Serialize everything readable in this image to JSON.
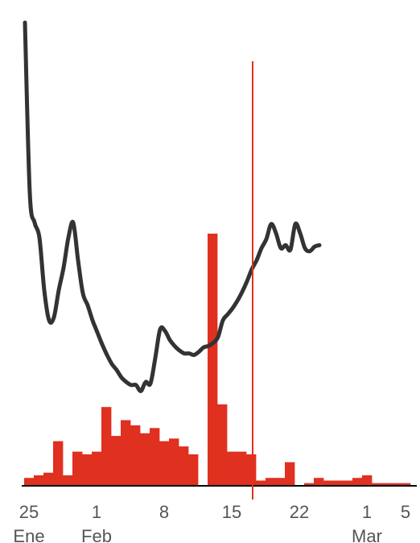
{
  "chart_data": {
    "type": "bar",
    "title": "",
    "xlabel": "",
    "ylabel": "",
    "grid": false,
    "legend": "none",
    "x_axis": {
      "ticks": [
        {
          "date": "2021-01-25",
          "label": "25",
          "sublabel": "Ene"
        },
        {
          "date": "2021-02-01",
          "label": "1",
          "sublabel": "Feb"
        },
        {
          "date": "2021-02-08",
          "label": "8",
          "sublabel": ""
        },
        {
          "date": "2021-02-15",
          "label": "15",
          "sublabel": ""
        },
        {
          "date": "2021-02-22",
          "label": "22",
          "sublabel": ""
        },
        {
          "date": "2021-03-01",
          "label": "1",
          "sublabel": "Mar"
        },
        {
          "date": "2021-03-05",
          "label": "5",
          "sublabel": ""
        }
      ]
    },
    "bars": {
      "color": "#e03020",
      "dates": [
        "2021-01-25",
        "2021-01-26",
        "2021-01-27",
        "2021-01-28",
        "2021-01-29",
        "2021-01-30",
        "2021-01-31",
        "2021-02-01",
        "2021-02-02",
        "2021-02-03",
        "2021-02-04",
        "2021-02-05",
        "2021-02-06",
        "2021-02-07",
        "2021-02-08",
        "2021-02-09",
        "2021-02-10",
        "2021-02-11",
        "2021-02-12",
        "2021-02-13",
        "2021-02-14",
        "2021-02-15",
        "2021-02-16",
        "2021-02-17",
        "2021-02-18",
        "2021-02-19",
        "2021-02-20",
        "2021-02-21",
        "2021-02-22",
        "2021-02-23",
        "2021-02-24",
        "2021-02-25",
        "2021-02-26",
        "2021-02-27",
        "2021-02-28",
        "2021-03-01",
        "2021-03-02",
        "2021-03-03",
        "2021-03-04",
        "2021-03-05"
      ],
      "values": [
        3,
        4,
        5,
        17,
        4,
        13,
        12,
        13,
        30,
        19,
        25,
        23,
        20,
        22,
        17,
        18,
        15,
        12,
        0,
        96,
        31,
        13,
        13,
        12,
        2,
        3,
        3,
        9,
        0,
        1,
        3,
        2,
        2,
        2,
        3,
        4,
        1,
        1,
        1,
        1
      ]
    },
    "line": {
      "color": "#333333",
      "points": [
        [
          "2021-01-25 00:00",
          308
        ],
        [
          "2021-01-25 12:00",
          195
        ],
        [
          "2021-01-26 00:00",
          175
        ],
        [
          "2021-01-26 12:00",
          165
        ],
        [
          "2021-01-27 00:00",
          130
        ],
        [
          "2021-01-27 12:00",
          110
        ],
        [
          "2021-01-28 00:00",
          112
        ],
        [
          "2021-01-28 12:00",
          130
        ],
        [
          "2021-01-29 00:00",
          145
        ],
        [
          "2021-01-29 12:00",
          165
        ],
        [
          "2021-01-30 00:00",
          175
        ],
        [
          "2021-01-30 12:00",
          150
        ],
        [
          "2021-01-31 00:00",
          128
        ],
        [
          "2021-01-31 12:00",
          120
        ],
        [
          "2021-02-01 00:00",
          110
        ],
        [
          "2021-02-01 12:00",
          102
        ],
        [
          "2021-02-02 00:00",
          94
        ],
        [
          "2021-02-02 12:00",
          87
        ],
        [
          "2021-02-03 00:00",
          81
        ],
        [
          "2021-02-03 12:00",
          77
        ],
        [
          "2021-02-04 00:00",
          72
        ],
        [
          "2021-02-04 12:00",
          69
        ],
        [
          "2021-02-05 00:00",
          67
        ],
        [
          "2021-02-05 12:00",
          67
        ],
        [
          "2021-02-06 00:00",
          63
        ],
        [
          "2021-02-06 12:00",
          69
        ],
        [
          "2021-02-07 00:00",
          68
        ],
        [
          "2021-02-07 12:00",
          85
        ],
        [
          "2021-02-08 00:00",
          104
        ],
        [
          "2021-02-08 12:00",
          103
        ],
        [
          "2021-02-09 00:00",
          97
        ],
        [
          "2021-02-09 12:00",
          93
        ],
        [
          "2021-02-10 00:00",
          90
        ],
        [
          "2021-02-10 12:00",
          88
        ],
        [
          "2021-02-11 00:00",
          88
        ],
        [
          "2021-02-11 12:00",
          87
        ],
        [
          "2021-02-12 00:00",
          89
        ],
        [
          "2021-02-12 12:00",
          92
        ],
        [
          "2021-02-13 00:00",
          93
        ],
        [
          "2021-02-13 12:00",
          95
        ],
        [
          "2021-02-14 00:00",
          99
        ],
        [
          "2021-02-14 12:00",
          110
        ],
        [
          "2021-02-15 00:00",
          114
        ],
        [
          "2021-02-15 12:00",
          118
        ],
        [
          "2021-02-16 00:00",
          123
        ],
        [
          "2021-02-16 12:00",
          129
        ],
        [
          "2021-02-17 00:00",
          136
        ],
        [
          "2021-02-17 12:00",
          144
        ],
        [
          "2021-02-18 00:00",
          150
        ],
        [
          "2021-02-18 12:00",
          158
        ],
        [
          "2021-02-19 00:00",
          164
        ],
        [
          "2021-02-19 12:00",
          174
        ],
        [
          "2021-02-20 00:00",
          168
        ],
        [
          "2021-02-20 12:00",
          158
        ],
        [
          "2021-02-21 00:00",
          160
        ],
        [
          "2021-02-21 12:00",
          157
        ],
        [
          "2021-02-22 00:00",
          174
        ],
        [
          "2021-02-22 12:00",
          168
        ],
        [
          "2021-02-23 00:00",
          158
        ],
        [
          "2021-02-23 12:00",
          156
        ],
        [
          "2021-02-24 00:00",
          159
        ],
        [
          "2021-02-24 12:00",
          160
        ]
      ]
    },
    "reference_line": {
      "date": "2021-02-18 00:00",
      "color": "#e03020"
    }
  }
}
